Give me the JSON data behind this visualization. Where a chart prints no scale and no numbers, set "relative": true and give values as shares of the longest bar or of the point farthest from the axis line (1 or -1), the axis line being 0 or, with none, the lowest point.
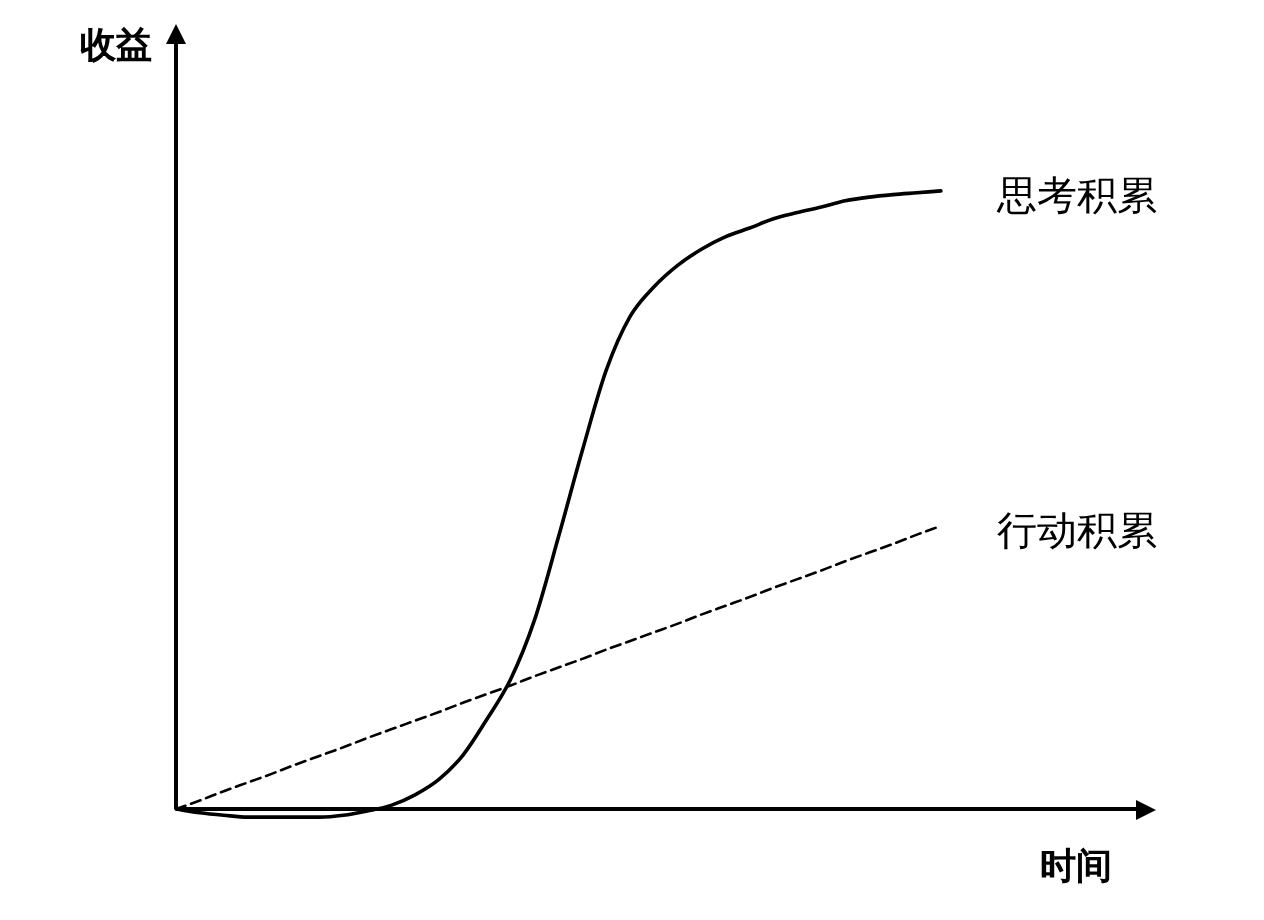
{
  "chart_data": {
    "type": "line",
    "relative": true,
    "xlabel": "时间",
    "ylabel": "收益",
    "legend": false,
    "tick_labels": false,
    "marker": "none",
    "categories": [
      null,
      null,
      null,
      null,
      null,
      null,
      null,
      null,
      null,
      null,
      null,
      null,
      null,
      null,
      null,
      null,
      null,
      null,
      null,
      null,
      null,
      null,
      null,
      null,
      null,
      null,
      null,
      null,
      null,
      null,
      null,
      null,
      null,
      null,
      null,
      null,
      null,
      null,
      null,
      null,
      null,
      null
    ],
    "series": [
      {
        "name": "思考积累",
        "color": "#000000",
        "line_style": "solid",
        "values": [
          0,
          -0.006,
          -0.01,
          -0.013,
          -0.013,
          -0.013,
          -0.013,
          -0.01,
          -0.003,
          0.006,
          0.023,
          0.048,
          0.087,
          0.145,
          0.21,
          0.306,
          0.44,
          0.58,
          0.71,
          0.797,
          0.845,
          0.88,
          0.906,
          0.926,
          0.94,
          0.955,
          0.965,
          0.974,
          0.984,
          0.99,
          0.994,
          0.997,
          1,
          null,
          null,
          null,
          null,
          null,
          null,
          null,
          null,
          null
        ]
      },
      {
        "name": "行动积累",
        "color": "#000000",
        "line_style": "dashed",
        "values": [
          0,
          0.014,
          0.029,
          0.043,
          0.057,
          0.072,
          0.086,
          0.1,
          0.115,
          0.129,
          0.143,
          0.157,
          0.172,
          0.186,
          0.2,
          0.215,
          0.229,
          0.243,
          0.258,
          0.272,
          0.286,
          0.3,
          0.315,
          0.329,
          0.343,
          0.358,
          0.372,
          0.386,
          0.401,
          0.415,
          0.429,
          0.444,
          0.458,
          null,
          null,
          null,
          null,
          null,
          null,
          null,
          null,
          null
        ]
      }
    ]
  }
}
